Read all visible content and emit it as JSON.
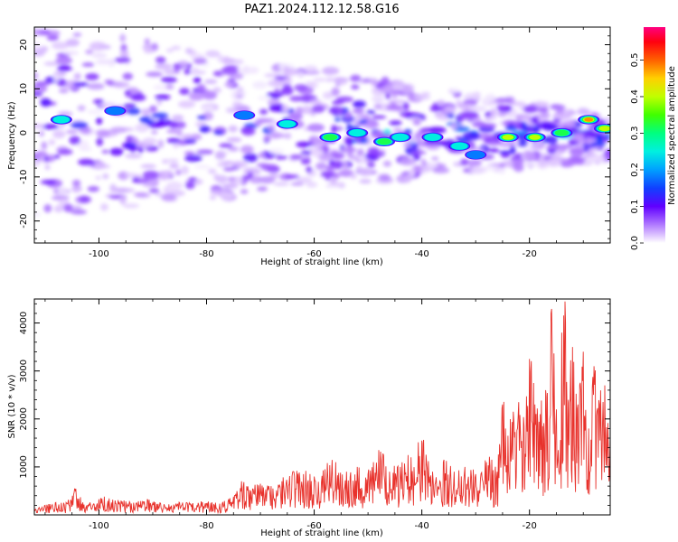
{
  "figure": {
    "title": "PAZ1.2024.112.12.58.G16"
  },
  "chart_data": [
    {
      "type": "heatmap",
      "xlabel": "Height of straight line (km)",
      "ylabel": "Frequency (Hz)",
      "xlim": [
        -112,
        -5
      ],
      "ylim": [
        -25,
        24
      ],
      "x_ticks": [
        -100,
        -80,
        -60,
        -40,
        -20
      ],
      "x_tick_labels": [
        "-100",
        "-80",
        "-60",
        "-40",
        "-20"
      ],
      "y_ticks": [
        -20,
        -10,
        0,
        10,
        20
      ],
      "y_tick_labels": [
        "-20",
        "-10",
        "0",
        "10",
        "20"
      ],
      "colormap": "gist_ncar-like (white → purple → blue → cyan → green → yellow → orange → red → magenta)",
      "background_color": "#ffffff",
      "description_note": "Spectral amplitude concentrated along a band that narrows from ~±15 Hz at -110 km to ~0 Hz near -5 km",
      "hotspots": [
        {
          "x": -107,
          "y": 3,
          "value": 0.25
        },
        {
          "x": -97,
          "y": 5,
          "value": 0.18
        },
        {
          "x": -73,
          "y": 4,
          "value": 0.2
        },
        {
          "x": -65,
          "y": 2,
          "value": 0.28
        },
        {
          "x": -57,
          "y": -1,
          "value": 0.32
        },
        {
          "x": -52,
          "y": 0,
          "value": 0.27
        },
        {
          "x": -47,
          "y": -2,
          "value": 0.3
        },
        {
          "x": -44,
          "y": -1,
          "value": 0.28
        },
        {
          "x": -38,
          "y": -1,
          "value": 0.27
        },
        {
          "x": -33,
          "y": -3,
          "value": 0.25
        },
        {
          "x": -30,
          "y": -5,
          "value": 0.22
        },
        {
          "x": -24,
          "y": -1,
          "value": 0.45
        },
        {
          "x": -19,
          "y": -1,
          "value": 0.42
        },
        {
          "x": -14,
          "y": 0,
          "value": 0.35
        },
        {
          "x": -9,
          "y": 3,
          "value": 0.5
        },
        {
          "x": -6,
          "y": 1,
          "value": 0.38
        }
      ]
    },
    {
      "type": "colorbar",
      "label": "Normalized spectral amplitude",
      "range": [
        0.0,
        0.59
      ],
      "ticks": [
        0.0,
        0.1,
        0.2,
        0.3,
        0.4,
        0.5
      ],
      "tick_labels": [
        "0.0",
        "0.1",
        "0.2",
        "0.3",
        "0.4",
        "0.5"
      ],
      "stops": [
        {
          "v": 0.0,
          "color": "#ffffff"
        },
        {
          "v": 0.02,
          "color": "#e0c8ff"
        },
        {
          "v": 0.06,
          "color": "#a060ff"
        },
        {
          "v": 0.1,
          "color": "#6000ff"
        },
        {
          "v": 0.15,
          "color": "#1040ff"
        },
        {
          "v": 0.2,
          "color": "#00a0ff"
        },
        {
          "v": 0.25,
          "color": "#00f0e0"
        },
        {
          "v": 0.3,
          "color": "#00ff80"
        },
        {
          "v": 0.35,
          "color": "#40ff00"
        },
        {
          "v": 0.4,
          "color": "#c0ff00"
        },
        {
          "v": 0.45,
          "color": "#ffd000"
        },
        {
          "v": 0.5,
          "color": "#ff6000"
        },
        {
          "v": 0.55,
          "color": "#ff0010"
        },
        {
          "v": 0.59,
          "color": "#ff0080"
        }
      ]
    },
    {
      "type": "line",
      "xlabel": "Height of straight line (km)",
      "ylabel": "SNR (10 * v/v)",
      "xlim": [
        -112,
        -5
      ],
      "ylim": [
        0,
        4500
      ],
      "x_ticks": [
        -100,
        -80,
        -60,
        -40,
        -20
      ],
      "x_tick_labels": [
        "-100",
        "-80",
        "-60",
        "-40",
        "-20"
      ],
      "y_ticks": [
        1000,
        2000,
        3000,
        4000
      ],
      "y_tick_labels": [
        "1000",
        "2000",
        "3000",
        "4000"
      ],
      "series": [
        {
          "color": "#e8322c",
          "x": [
            -112,
            -110,
            -108,
            -106,
            -104.5,
            -103,
            -101,
            -99,
            -97,
            -95,
            -93,
            -91,
            -89,
            -87,
            -85,
            -83,
            -81,
            -79,
            -77,
            -75,
            -73.5,
            -72,
            -70,
            -68,
            -66,
            -64,
            -62,
            -60,
            -58,
            -56,
            -54,
            -52,
            -50,
            -48,
            -46,
            -44,
            -42,
            -40,
            -38,
            -36,
            -34,
            -32,
            -30,
            -28,
            -27,
            -26,
            -25,
            -24,
            -23,
            -22,
            -21,
            -20,
            -19,
            -18,
            -17,
            -16,
            -15,
            -14,
            -13.4,
            -13,
            -12,
            -11,
            -10,
            -9,
            -8,
            -7,
            -6,
            -5
          ],
          "y": [
            120,
            200,
            260,
            240,
            550,
            260,
            230,
            380,
            300,
            280,
            250,
            330,
            230,
            220,
            250,
            230,
            280,
            260,
            270,
            380,
            700,
            520,
            650,
            600,
            700,
            900,
            850,
            800,
            950,
            1100,
            900,
            1000,
            850,
            1350,
            900,
            1000,
            1200,
            1550,
            900,
            1100,
            900,
            1000,
            850,
            1100,
            1150,
            900,
            2300,
            1650,
            2150,
            2350,
            1850,
            3250,
            2300,
            2100,
            2600,
            4200,
            2200,
            3800,
            4450,
            1900,
            3500,
            2300,
            3400,
            1800,
            3100,
            2300,
            2700,
            1600
          ]
        }
      ]
    }
  ]
}
